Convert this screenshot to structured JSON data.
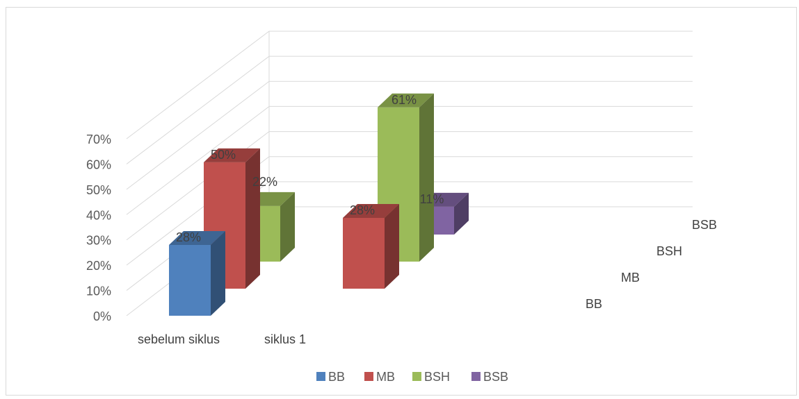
{
  "chart_data": {
    "type": "bar",
    "subtype": "3d-clustered-column",
    "categories": [
      "sebelum siklus",
      "siklus 1"
    ],
    "series": [
      {
        "name": "BB",
        "color": "#4f81bd",
        "values": [
          0.28,
          null
        ]
      },
      {
        "name": "MB",
        "color": "#c0504d",
        "values": [
          0.5,
          0.28
        ]
      },
      {
        "name": "BSH",
        "color": "#9bbb59",
        "values": [
          0.22,
          0.61
        ]
      },
      {
        "name": "BSB",
        "color": "#8064a2",
        "values": [
          null,
          0.11
        ]
      }
    ],
    "data_labels": {
      "sebelum siklus": {
        "BB": "28%",
        "MB": "50%",
        "BSH": "22%"
      },
      "siklus 1": {
        "MB": "28%",
        "BSH": "61%",
        "BSB": "11%"
      }
    },
    "y_ticks": [
      "0%",
      "10%",
      "20%",
      "30%",
      "40%",
      "50%",
      "60%",
      "70%"
    ],
    "ylim": [
      0,
      0.7
    ],
    "depth_axis_labels": [
      "BB",
      "MB",
      "BSH",
      "BSB"
    ],
    "grid": true,
    "legend": {
      "position": "bottom",
      "entries": [
        "BB",
        "MB",
        "BSH",
        "BSB"
      ]
    }
  }
}
